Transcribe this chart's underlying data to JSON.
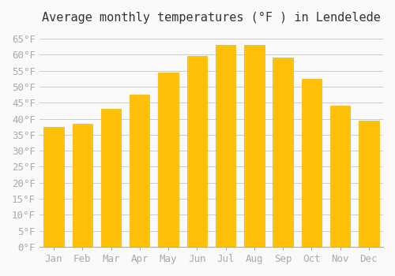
{
  "title": "Average monthly temperatures (°F ) in Lendelede",
  "months": [
    "Jan",
    "Feb",
    "Mar",
    "Apr",
    "May",
    "Jun",
    "Jul",
    "Aug",
    "Sep",
    "Oct",
    "Nov",
    "Dec"
  ],
  "values": [
    37.5,
    38.5,
    43.0,
    47.5,
    54.5,
    59.5,
    63.0,
    63.0,
    59.0,
    52.5,
    44.0,
    39.5
  ],
  "bar_color_top": "#FFC107",
  "bar_color_bottom": "#FFB300",
  "bar_edge_color": "#E65100",
  "background_color": "#FAFAFA",
  "grid_color": "#CCCCCC",
  "ylim": [
    0,
    67
  ],
  "yticks": [
    0,
    5,
    10,
    15,
    20,
    25,
    30,
    35,
    40,
    45,
    50,
    55,
    60,
    65
  ],
  "title_fontsize": 11,
  "tick_fontsize": 9,
  "tick_font_color": "#AAAAAA"
}
